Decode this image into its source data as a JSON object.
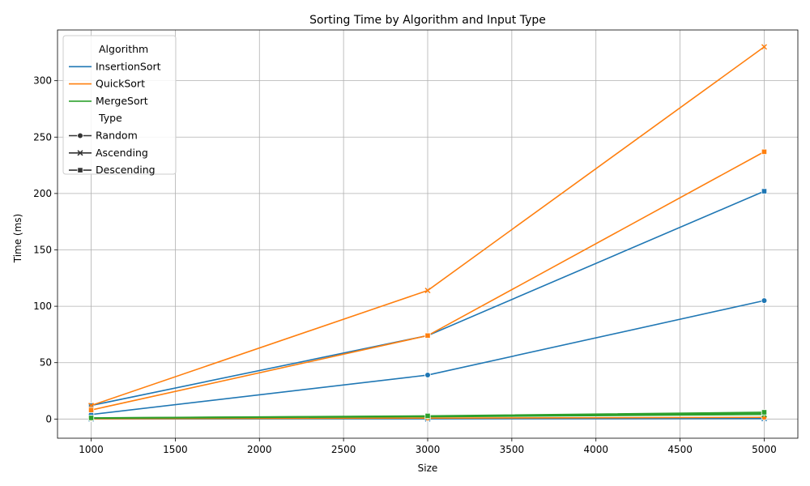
{
  "chart_data": {
    "type": "line",
    "title": "Sorting Time by Algorithm and Input Type",
    "xlabel": "Size",
    "ylabel": "Time (ms)",
    "xlim": [
      800,
      5200
    ],
    "ylim": [
      -17,
      345
    ],
    "x_ticks": [
      1000,
      1500,
      2000,
      2500,
      3000,
      3500,
      4000,
      4500,
      5000
    ],
    "y_ticks": [
      0,
      50,
      100,
      150,
      200,
      250,
      300
    ],
    "x": [
      1000,
      3000,
      5000
    ],
    "grid": true,
    "legend_position": "top-left",
    "legend": {
      "hue_title": "Algorithm",
      "style_title": "Type",
      "algorithms": [
        {
          "name": "InsertionSort",
          "color": "#1f77b4"
        },
        {
          "name": "QuickSort",
          "color": "#ff7f0e"
        },
        {
          "name": "MergeSort",
          "color": "#2ca02c"
        }
      ],
      "types": [
        {
          "name": "Random",
          "marker": "circle"
        },
        {
          "name": "Ascending",
          "marker": "x"
        },
        {
          "name": "Descending",
          "marker": "square"
        }
      ]
    },
    "series": [
      {
        "algorithm": "InsertionSort",
        "type": "Random",
        "values": [
          4,
          39,
          105
        ]
      },
      {
        "algorithm": "InsertionSort",
        "type": "Ascending",
        "values": [
          0.1,
          0.2,
          0.4
        ]
      },
      {
        "algorithm": "InsertionSort",
        "type": "Descending",
        "values": [
          12,
          74,
          202
        ]
      },
      {
        "algorithm": "QuickSort",
        "type": "Random",
        "values": [
          0.3,
          0.8,
          1.5
        ]
      },
      {
        "algorithm": "QuickSort",
        "type": "Ascending",
        "values": [
          12,
          114,
          330
        ]
      },
      {
        "algorithm": "QuickSort",
        "type": "Descending",
        "values": [
          8,
          74,
          237
        ]
      },
      {
        "algorithm": "MergeSort",
        "type": "Random",
        "values": [
          1,
          2.5,
          5
        ]
      },
      {
        "algorithm": "MergeSort",
        "type": "Ascending",
        "values": [
          0.8,
          2,
          4
        ]
      },
      {
        "algorithm": "MergeSort",
        "type": "Descending",
        "values": [
          1,
          2.8,
          6
        ]
      }
    ]
  }
}
